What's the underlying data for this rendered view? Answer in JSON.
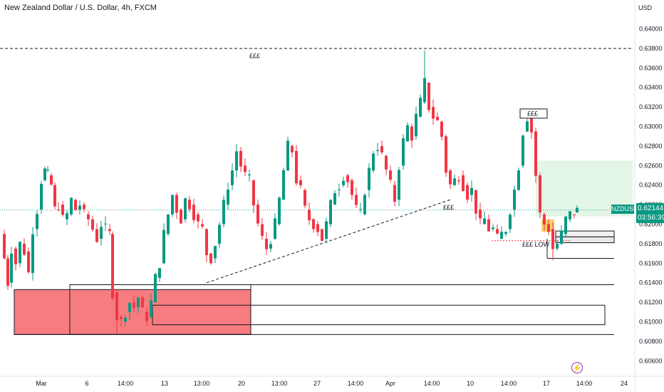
{
  "header": {
    "title": "New Zealand Dollar / U.S. Dollar, 4h, FXCM"
  },
  "currency_label": "USD",
  "price_badge": {
    "symbol": "NZDUSD",
    "price": "0.62144",
    "countdown": "03:56:39"
  },
  "annotations": {
    "top_liquidity": "£££",
    "swing_high": "£££",
    "trendline": "£££",
    "low": "£££ LOW"
  },
  "colors": {
    "up": "#089981",
    "down": "#f23645",
    "red_zone": "#f77c80",
    "green_zone": "#e3f5e5",
    "yellow": "#fbd36a",
    "badge": "#089981",
    "price_line": "#26a69a"
  },
  "icons": {
    "bolt": "lightning-icon"
  },
  "chart_data": {
    "type": "candlestick",
    "title": "New Zealand Dollar / U.S. Dollar, 4h, FXCM",
    "ylabel": "USD",
    "ylim": [
      0.605,
      0.6415
    ],
    "y_ticks": [
      "0.64000",
      "0.63800",
      "0.63600",
      "0.63400",
      "0.63200",
      "0.63000",
      "0.62800",
      "0.62600",
      "0.62400",
      "0.62200",
      "0.62000",
      "0.61800",
      "0.61600",
      "0.61400",
      "0.61200",
      "0.61000",
      "0.60800",
      "0.60600"
    ],
    "x_ticks": [
      "Mar",
      "6",
      "14:00",
      "13",
      "13:00",
      "20",
      "13:00",
      "27",
      "14:00",
      "Apr",
      "14:00",
      "10",
      "14:00",
      "17",
      "14:00",
      "24"
    ],
    "last_price": 0.62144,
    "close_path": [
      [
        0,
        0.619
      ],
      [
        6,
        0.6165
      ],
      [
        11,
        0.614
      ],
      [
        16,
        0.6175
      ],
      [
        22,
        0.616
      ],
      [
        28,
        0.618
      ],
      [
        34,
        0.6172
      ],
      [
        40,
        0.615
      ],
      [
        46,
        0.6195
      ],
      [
        52,
        0.6215
      ],
      [
        58,
        0.6245
      ],
      [
        63,
        0.6255
      ],
      [
        67,
        0.625
      ],
      [
        72,
        0.624
      ],
      [
        77,
        0.6215
      ],
      [
        82,
        0.622
      ],
      [
        88,
        0.6205
      ],
      [
        94,
        0.621
      ],
      [
        100,
        0.6225
      ],
      [
        106,
        0.6215
      ],
      [
        112,
        0.622
      ],
      [
        118,
        0.621
      ],
      [
        124,
        0.6205
      ],
      [
        130,
        0.6195
      ],
      [
        136,
        0.6185
      ],
      [
        142,
        0.62
      ],
      [
        148,
        0.6195
      ],
      [
        154,
        0.619
      ],
      [
        158,
        0.613
      ],
      [
        164,
        0.6105
      ],
      [
        170,
        0.61
      ],
      [
        176,
        0.611
      ],
      [
        182,
        0.612
      ],
      [
        188,
        0.6115
      ],
      [
        194,
        0.6125
      ],
      [
        200,
        0.611
      ],
      [
        206,
        0.6105
      ],
      [
        212,
        0.612
      ],
      [
        218,
        0.6145
      ],
      [
        224,
        0.616
      ],
      [
        230,
        0.619
      ],
      [
        236,
        0.621
      ],
      [
        242,
        0.623
      ],
      [
        248,
        0.6215
      ],
      [
        254,
        0.6205
      ],
      [
        260,
        0.6225
      ],
      [
        266,
        0.622
      ],
      [
        272,
        0.621
      ],
      [
        278,
        0.62
      ],
      [
        284,
        0.6195
      ],
      [
        290,
        0.617
      ],
      [
        296,
        0.6165
      ],
      [
        302,
        0.618
      ],
      [
        308,
        0.62
      ],
      [
        314,
        0.622
      ],
      [
        320,
        0.624
      ],
      [
        326,
        0.6255
      ],
      [
        332,
        0.6275
      ],
      [
        338,
        0.626
      ],
      [
        344,
        0.625
      ],
      [
        350,
        0.6245
      ],
      [
        356,
        0.622
      ],
      [
        362,
        0.62
      ],
      [
        368,
        0.6185
      ],
      [
        374,
        0.6175
      ],
      [
        380,
        0.6185
      ],
      [
        386,
        0.62
      ],
      [
        392,
        0.6225
      ],
      [
        398,
        0.6255
      ],
      [
        404,
        0.628
      ],
      [
        410,
        0.6275
      ],
      [
        416,
        0.6245
      ],
      [
        422,
        0.6235
      ],
      [
        428,
        0.6215
      ],
      [
        434,
        0.6205
      ],
      [
        440,
        0.62
      ],
      [
        446,
        0.6195
      ],
      [
        452,
        0.6185
      ],
      [
        458,
        0.62
      ],
      [
        464,
        0.622
      ],
      [
        470,
        0.6235
      ],
      [
        476,
        0.624
      ],
      [
        482,
        0.625
      ],
      [
        488,
        0.6245
      ],
      [
        494,
        0.623
      ],
      [
        500,
        0.6215
      ],
      [
        506,
        0.621
      ],
      [
        512,
        0.6235
      ],
      [
        518,
        0.6255
      ],
      [
        524,
        0.6275
      ],
      [
        530,
        0.628
      ],
      [
        536,
        0.627
      ],
      [
        542,
        0.6255
      ],
      [
        548,
        0.624
      ],
      [
        554,
        0.6225
      ],
      [
        560,
        0.626
      ],
      [
        566,
        0.6285
      ],
      [
        572,
        0.63
      ],
      [
        578,
        0.629
      ],
      [
        584,
        0.631
      ],
      [
        590,
        0.6325
      ],
      [
        596,
        0.6345
      ],
      [
        602,
        0.632
      ],
      [
        608,
        0.631
      ],
      [
        614,
        0.6305
      ],
      [
        620,
        0.629
      ],
      [
        626,
        0.6255
      ],
      [
        632,
        0.624
      ],
      [
        638,
        0.6245
      ],
      [
        644,
        0.625
      ],
      [
        650,
        0.624
      ],
      [
        656,
        0.623
      ],
      [
        662,
        0.6235
      ],
      [
        668,
        0.6215
      ],
      [
        674,
        0.62
      ],
      [
        680,
        0.6205
      ],
      [
        686,
        0.6195
      ],
      [
        692,
        0.6195
      ],
      [
        698,
        0.6185
      ],
      [
        704,
        0.619
      ],
      [
        710,
        0.6195
      ],
      [
        716,
        0.6215
      ],
      [
        722,
        0.6235
      ],
      [
        728,
        0.626
      ],
      [
        734,
        0.6295
      ],
      [
        740,
        0.631
      ],
      [
        746,
        0.6295
      ],
      [
        752,
        0.625
      ],
      [
        758,
        0.621
      ],
      [
        764,
        0.62
      ],
      [
        770,
        0.6195
      ],
      [
        776,
        0.6175
      ],
      [
        782,
        0.618
      ],
      [
        788,
        0.619
      ],
      [
        794,
        0.6205
      ],
      [
        800,
        0.621
      ],
      [
        806,
        0.6212
      ],
      [
        810,
        0.6214
      ]
    ],
    "levels": [
      {
        "name": "top-liquidity",
        "value": 0.638,
        "style": "dashed"
      },
      {
        "name": "level-61400",
        "value": 0.6138
      },
      {
        "name": "level-60850",
        "value": 0.6087
      },
      {
        "name": "low-level",
        "value": 0.6165
      }
    ]
  }
}
